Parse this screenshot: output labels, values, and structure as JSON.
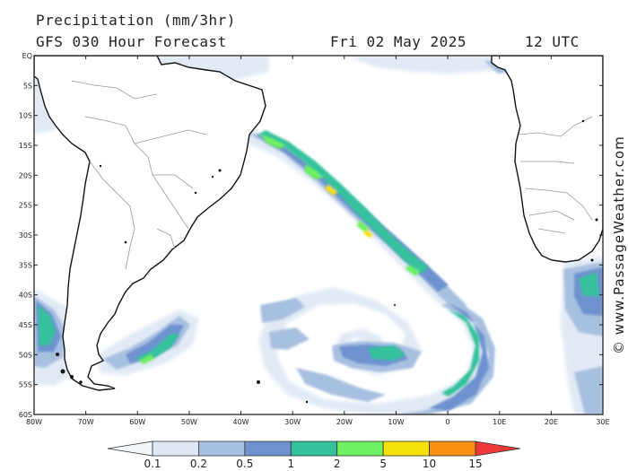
{
  "header": {
    "title": "Precipitation (mm/3hr)",
    "subtitle": "GFS 030 Hour Forecast",
    "date": "Fri 02 May 2025",
    "time": "12 UTC"
  },
  "watermark": "© www.PassageWeather.com",
  "map": {
    "lat_labels": [
      "EQ",
      "5S",
      "10S",
      "15S",
      "20S",
      "25S",
      "30S",
      "35S",
      "40S",
      "45S",
      "50S",
      "55S",
      "60S"
    ],
    "lon_labels": [
      "80W",
      "70W",
      "60W",
      "50W",
      "40W",
      "30W",
      "20W",
      "10W",
      "0",
      "10E",
      "20E",
      "30E"
    ],
    "colors": {
      "ocean": "#ffffff",
      "land_edge": "#111111",
      "border": "#9a9a9a"
    }
  },
  "colorbar": {
    "levels": [
      "0.1",
      "0.2",
      "0.5",
      "1",
      "2",
      "5",
      "10",
      "15"
    ],
    "colors": [
      "#f2f6fb",
      "#dfe8f4",
      "#a8c0e0",
      "#6e92d0",
      "#34c29c",
      "#6ef060",
      "#f6e20a",
      "#f89010",
      "#f03838"
    ]
  },
  "precip_colors": {
    "faint": "#dfe8f4",
    "light": "#a8c0e0",
    "moderate": "#6e92d0",
    "heavy": "#34c29c",
    "intense": "#6ef060",
    "extreme": "#f6e20a"
  }
}
